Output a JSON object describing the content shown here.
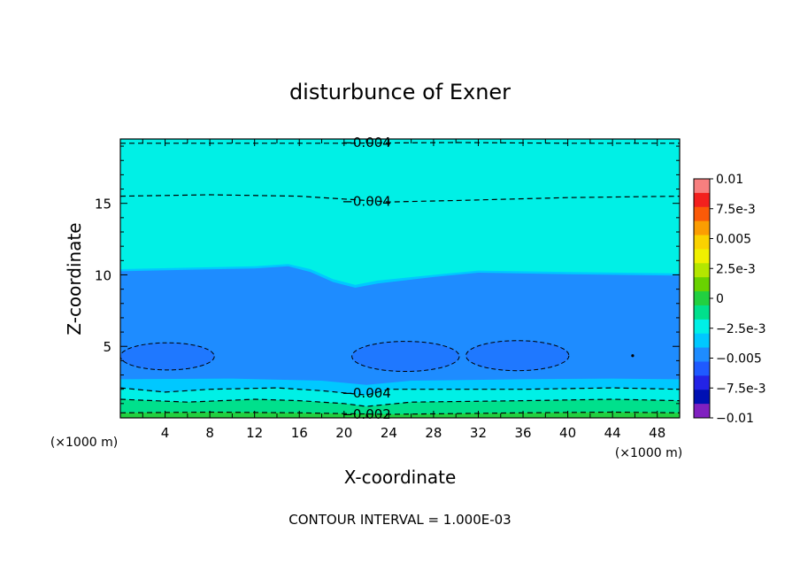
{
  "chart_data": {
    "type": "contour",
    "title": "disturbunce of Exner",
    "xlabel": "X-coordinate",
    "ylabel": "Z-coordinate",
    "x_unit": "(×1000 m)",
    "x_unit_right": "(×1000 m)",
    "xlim": [
      0,
      50
    ],
    "ylim": [
      0,
      19.5
    ],
    "x_ticks": [
      4,
      8,
      12,
      16,
      20,
      24,
      28,
      32,
      36,
      40,
      44,
      48
    ],
    "y_ticks": [
      5,
      10,
      15
    ],
    "footer": "CONTOUR INTERVAL = 1.000E-03",
    "colorbar": {
      "labels": [
        "0.01",
        "7.5e-3",
        "0.005",
        "2.5e-3",
        "0",
        "−2.5e-3",
        "−0.005",
        "−7.5e-3",
        "−0.01"
      ],
      "bands": [
        "#f77f7f",
        "#f3201e",
        "#fb5a08",
        "#fb9d02",
        "#fad200",
        "#f0f000",
        "#b4e600",
        "#69d200",
        "#22d040",
        "#00e08c",
        "#00f0e6",
        "#00c8ff",
        "#1e8cff",
        "#1f5aff",
        "#2323e6",
        "#0010b3",
        "#8020c0"
      ]
    },
    "fill_levels": [
      {
        "name": "deep",
        "color": "#1e8cff"
      },
      {
        "name": "mid",
        "color": "#00c8ff"
      },
      {
        "name": "upper",
        "color": "#00f0e6"
      },
      {
        "name": "green1",
        "color": "#00e08c"
      },
      {
        "name": "green2",
        "color": "#22d040"
      }
    ],
    "contour_labels": [
      {
        "text": "−0.004",
        "x": 22,
        "z": 19.3
      },
      {
        "text": "−0.004",
        "x": 22,
        "z": 15.2
      },
      {
        "text": "−0.004",
        "x": 22,
        "z": 1.8
      },
      {
        "text": "−0.002",
        "x": 22,
        "z": 0.3
      }
    ],
    "contours": [
      {
        "level": -0.004,
        "points": [
          [
            0,
            19.2
          ],
          [
            10,
            19.2
          ],
          [
            20,
            19.2
          ],
          [
            30,
            19.25
          ],
          [
            40,
            19.2
          ],
          [
            50,
            19.2
          ]
        ]
      },
      {
        "level": -0.004,
        "points": [
          [
            0,
            15.5
          ],
          [
            8,
            15.6
          ],
          [
            16,
            15.5
          ],
          [
            20,
            15.3
          ],
          [
            24,
            15.1
          ],
          [
            30,
            15.2
          ],
          [
            40,
            15.4
          ],
          [
            50,
            15.5
          ]
        ]
      },
      {
        "level": -0.004,
        "points": [
          [
            0,
            2.1
          ],
          [
            4,
            1.8
          ],
          [
            8,
            2.0
          ],
          [
            14,
            2.1
          ],
          [
            18,
            1.9
          ],
          [
            22,
            1.6
          ],
          [
            24,
            2.0
          ],
          [
            36,
            2.0
          ],
          [
            44,
            2.1
          ],
          [
            50,
            2.0
          ]
        ]
      },
      {
        "level": -0.003,
        "points": [
          [
            0,
            1.3
          ],
          [
            6,
            1.1
          ],
          [
            12,
            1.3
          ],
          [
            16,
            1.2
          ],
          [
            20,
            1.0
          ],
          [
            22,
            0.8
          ],
          [
            26,
            1.1
          ],
          [
            36,
            1.2
          ],
          [
            44,
            1.3
          ],
          [
            50,
            1.2
          ]
        ]
      },
      {
        "level": -0.002,
        "points": [
          [
            0,
            0.35
          ],
          [
            8,
            0.4
          ],
          [
            16,
            0.35
          ],
          [
            20,
            0.3
          ],
          [
            24,
            0.25
          ],
          [
            36,
            0.35
          ],
          [
            44,
            0.4
          ],
          [
            50,
            0.35
          ]
        ]
      }
    ],
    "blobs": [
      {
        "cx": 4.2,
        "cz": 4.3,
        "rx": 4.2,
        "rz": 0.95
      },
      {
        "cx": 25.5,
        "cz": 4.3,
        "rx": 4.8,
        "rz": 1.05
      },
      {
        "cx": 35.5,
        "cz": 4.35,
        "rx": 4.6,
        "rz": 1.05
      }
    ]
  }
}
